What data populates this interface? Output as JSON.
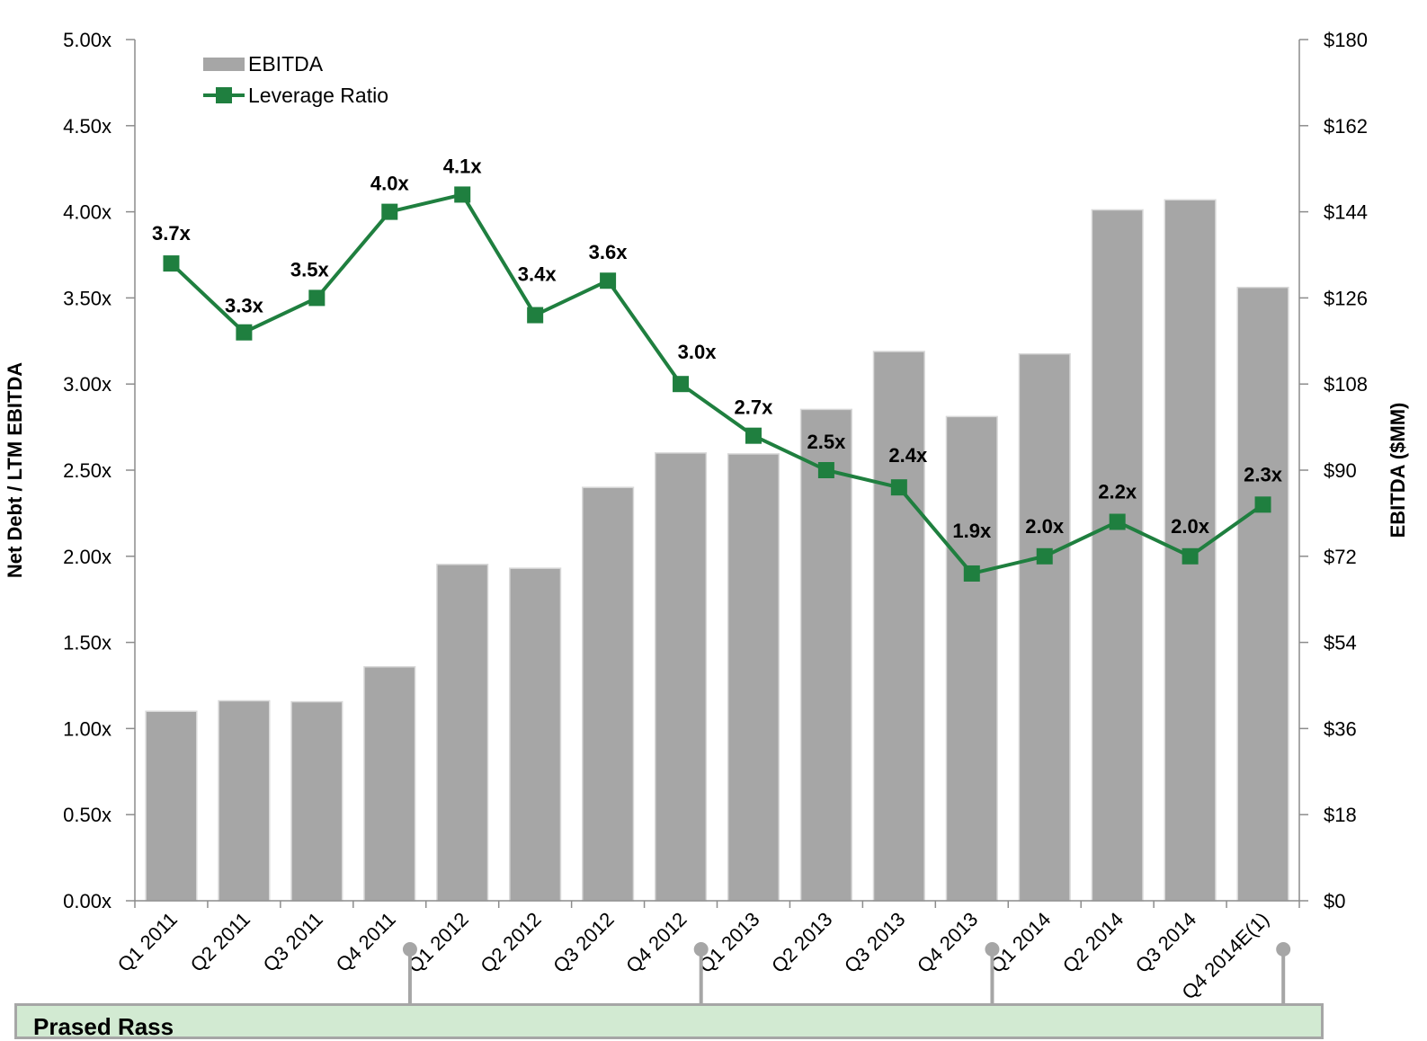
{
  "chart_data": {
    "type": "bar+line",
    "categories": [
      "Q1 2011",
      "Q2 2011",
      "Q3 2011",
      "Q4 2011",
      "Q1 2012",
      "Q2 2012",
      "Q3 2012",
      "Q4 2012",
      "Q1 2013",
      "Q2 2013",
      "Q3 2013",
      "Q4 2013",
      "Q1 2014",
      "Q2 2014",
      "Q3 2014",
      "Q4 2014E(1)"
    ],
    "series": [
      {
        "name": "EBITDA",
        "type": "bar",
        "axis": "right",
        "color": "#a6a6a6",
        "values": [
          39.6,
          41.8,
          41.6,
          48.9,
          70.3,
          69.5,
          86.4,
          93.6,
          93.4,
          102.7,
          114.8,
          101.2,
          114.3,
          144.4,
          146.5,
          128.2
        ]
      },
      {
        "name": "Leverage Ratio",
        "type": "line",
        "axis": "left",
        "color": "#1f7f3f",
        "values": [
          3.7,
          3.3,
          3.5,
          4.0,
          4.1,
          3.4,
          3.6,
          3.0,
          2.7,
          2.5,
          2.4,
          1.9,
          2.0,
          2.2,
          2.0,
          2.3
        ],
        "labels": [
          "3.7x",
          "3.3x",
          "3.5x",
          "4.0x",
          "4.1x",
          "3.4x",
          "3.6x",
          "3.0x",
          "2.7x",
          "2.5x",
          "2.4x",
          "1.9x",
          "2.0x",
          "2.2x",
          "2.0x",
          "2.3x"
        ]
      }
    ],
    "left_axis": {
      "title": "Net Debt / LTM EBITDA",
      "ylim": [
        0,
        5
      ],
      "ticks": [
        0,
        0.5,
        1,
        1.5,
        2,
        2.5,
        3,
        3.5,
        4,
        4.5,
        5
      ],
      "tick_labels": [
        "0.00x",
        "0.50x",
        "1.00x",
        "1.50x",
        "2.00x",
        "2.50x",
        "3.00x",
        "3.50x",
        "4.00x",
        "4.50x",
        "5.00x"
      ]
    },
    "right_axis": {
      "title": "EBITDA ($MM)",
      "ylim": [
        0,
        180
      ],
      "ticks": [
        0,
        18,
        36,
        54,
        72,
        90,
        108,
        126,
        144,
        162,
        180
      ],
      "tick_labels": [
        "$0",
        "$18",
        "$36",
        "$54",
        "$72",
        "$90",
        "$108",
        "$126",
        "$144",
        "$162",
        "$180"
      ]
    },
    "event_markers": [
      "Q4 2011",
      "Q4 2012",
      "Q4 2013",
      "Q4 2014E(1)"
    ],
    "legend": {
      "position": "top-left",
      "entries": [
        "EBITDA",
        "Leverage Ratio"
      ]
    },
    "grid": false
  },
  "footer": {
    "title": "Prased Rass"
  }
}
